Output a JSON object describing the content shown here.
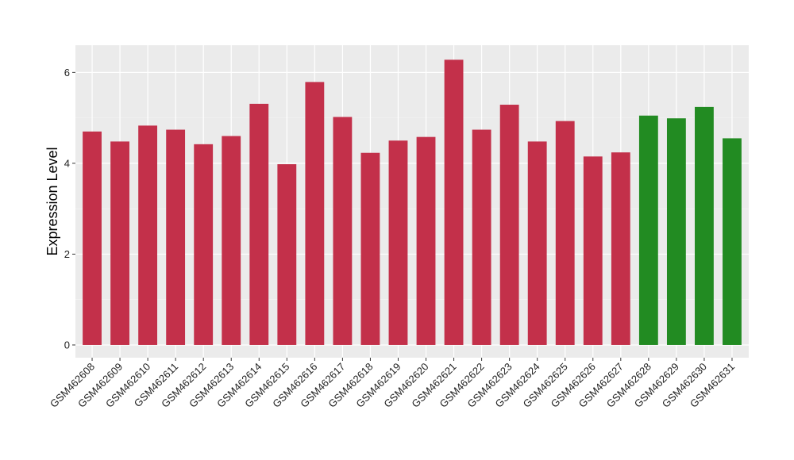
{
  "chart_data": {
    "type": "bar",
    "title": "",
    "xlabel": "",
    "ylabel": "Expression Level",
    "ylim": [
      -0.28,
      6.6
    ],
    "yticks": [
      0,
      2,
      4,
      6
    ],
    "grid": true,
    "background": "#EBEBEB",
    "categories": [
      "GSM462608",
      "GSM462609",
      "GSM462610",
      "GSM462611",
      "GSM462612",
      "GSM462613",
      "GSM462614",
      "GSM462615",
      "GSM462616",
      "GSM462617",
      "GSM462618",
      "GSM462619",
      "GSM462620",
      "GSM462621",
      "GSM462622",
      "GSM462623",
      "GSM462624",
      "GSM462625",
      "GSM462626",
      "GSM462627",
      "GSM462628",
      "GSM462629",
      "GSM462630",
      "GSM462631"
    ],
    "values": [
      4.7,
      4.48,
      4.83,
      4.74,
      4.42,
      4.6,
      5.31,
      3.98,
      5.79,
      5.02,
      4.23,
      4.5,
      4.58,
      6.28,
      4.74,
      5.29,
      4.48,
      4.93,
      4.15,
      4.24,
      5.05,
      4.99,
      5.24,
      4.55
    ],
    "bar_colors": [
      "#C3304A",
      "#C3304A",
      "#C3304A",
      "#C3304A",
      "#C3304A",
      "#C3304A",
      "#C3304A",
      "#C3304A",
      "#C3304A",
      "#C3304A",
      "#C3304A",
      "#C3304A",
      "#C3304A",
      "#C3304A",
      "#C3304A",
      "#C3304A",
      "#C3304A",
      "#C3304A",
      "#C3304A",
      "#C3304A",
      "#228B22",
      "#228B22",
      "#228B22",
      "#228B22"
    ]
  }
}
